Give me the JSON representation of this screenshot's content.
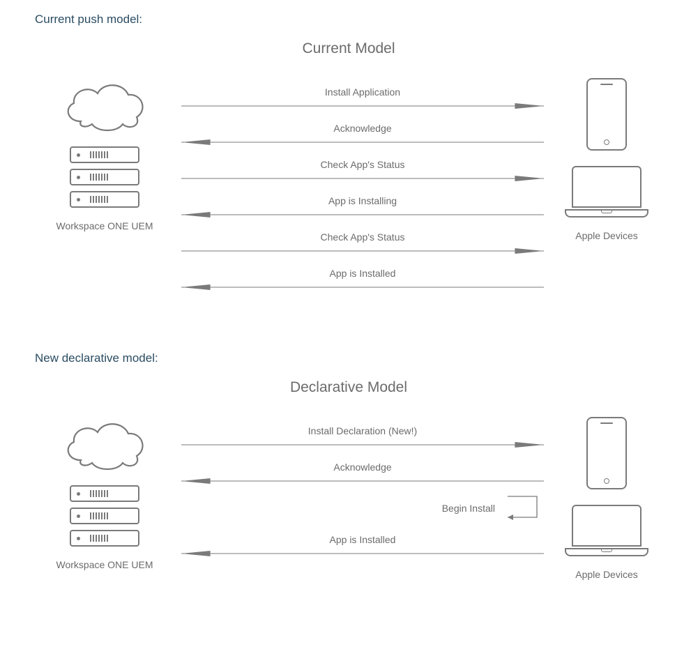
{
  "page_bg": "#ffffff",
  "label_color": "#2a4c62",
  "text_color": "#6b6b6b",
  "stroke_color": "#7a7a7a",
  "section1": {
    "label": "Current push model:",
    "title": "Current Model",
    "left_caption": "Workspace ONE UEM",
    "right_caption": "Apple Devices",
    "arrows": [
      {
        "text": "Install Application",
        "dir": "right"
      },
      {
        "text": "Acknowledge",
        "dir": "left"
      },
      {
        "text": "Check App's Status",
        "dir": "right"
      },
      {
        "text": "App is Installing",
        "dir": "left"
      },
      {
        "text": "Check App's Status",
        "dir": "right"
      },
      {
        "text": "App is Installed",
        "dir": "left"
      }
    ]
  },
  "section2": {
    "label": "New declarative model:",
    "title": "Declarative Model",
    "left_caption": "Workspace ONE UEM",
    "right_caption": "Apple Devices",
    "arrows_top": [
      {
        "text": "Install Declaration (New!)",
        "dir": "right"
      },
      {
        "text": "Acknowledge",
        "dir": "left"
      }
    ],
    "self_loop_label": "Begin Install",
    "arrows_bottom": [
      {
        "text": "App is Installed",
        "dir": "left"
      }
    ]
  }
}
